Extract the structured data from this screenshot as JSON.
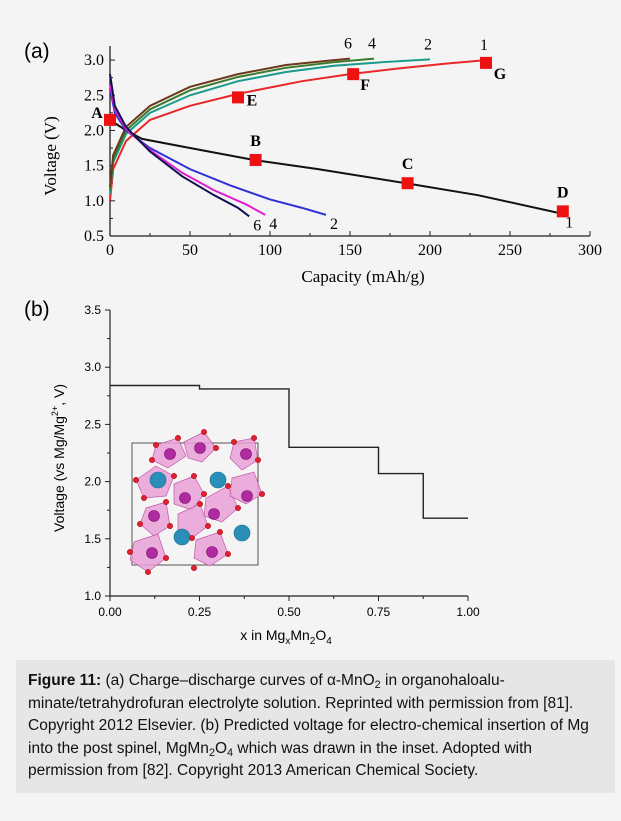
{
  "colors": {
    "red_curve": "#e8282a",
    "teal_curve": "#1a9a8a",
    "green_curve": "#3a7a2a",
    "brown_curve": "#6a3a1a",
    "black_curve": "#111111",
    "blue_curve": "#3030d8",
    "magenta_curve": "#e020d0",
    "navy_curve": "#101050",
    "marker": "#ee1111",
    "polyhedra": "#e9a0d6",
    "mg_atom": "#2a8fb8",
    "mn_atom": "#b02aa0",
    "o_atom": "#e02030"
  },
  "chart_data": [
    {
      "type": "line",
      "panel_label": "(a)",
      "xlabel": "Capacity (mAh/g)",
      "ylabel": "Voltage (V)",
      "xlim": [
        0,
        300
      ],
      "ylim": [
        0.5,
        3.2
      ],
      "xticks": [
        "0",
        "50",
        "100",
        "150",
        "200",
        "250",
        "300"
      ],
      "yticks": [
        "0.5",
        "1.0",
        "1.5",
        "2.0",
        "2.5",
        "3.0"
      ],
      "xtick_values": [
        0,
        50,
        100,
        150,
        200,
        250,
        300
      ],
      "ytick_values": [
        0.5,
        1.0,
        1.5,
        2.0,
        2.5,
        3.0
      ],
      "series": [
        {
          "name": "1",
          "color_key": "red_curve",
          "x": [
            0,
            2,
            10,
            25,
            50,
            80,
            120,
            150,
            180,
            210,
            235
          ],
          "y": [
            1.0,
            1.45,
            1.85,
            2.15,
            2.35,
            2.52,
            2.7,
            2.8,
            2.88,
            2.95,
            3.0
          ]
        },
        {
          "name": "2",
          "color_key": "teal_curve",
          "x": [
            0,
            2,
            10,
            25,
            50,
            80,
            110,
            140,
            170,
            200
          ],
          "y": [
            1.1,
            1.55,
            1.95,
            2.25,
            2.5,
            2.7,
            2.83,
            2.92,
            2.97,
            3.01
          ]
        },
        {
          "name": "4",
          "color_key": "green_curve",
          "x": [
            0,
            2,
            10,
            25,
            50,
            80,
            110,
            140,
            165
          ],
          "y": [
            1.15,
            1.6,
            2.0,
            2.3,
            2.57,
            2.76,
            2.89,
            2.97,
            3.02
          ]
        },
        {
          "name": "6",
          "color_key": "brown_curve",
          "x": [
            0,
            2,
            10,
            25,
            50,
            80,
            110,
            140,
            150
          ],
          "y": [
            1.2,
            1.65,
            2.05,
            2.35,
            2.62,
            2.8,
            2.93,
            3.0,
            3.02
          ]
        },
        {
          "name": "1",
          "color_key": "black_curve",
          "x": [
            0,
            10,
            20,
            50,
            90,
            130,
            185,
            230,
            282
          ],
          "y": [
            2.15,
            2.0,
            1.88,
            1.75,
            1.58,
            1.45,
            1.25,
            1.08,
            0.82
          ]
        },
        {
          "name": "2",
          "color_key": "blue_curve",
          "x": [
            0,
            3,
            10,
            25,
            50,
            75,
            100,
            120,
            135
          ],
          "y": [
            2.6,
            2.25,
            2.0,
            1.75,
            1.45,
            1.22,
            1.02,
            0.9,
            0.8
          ]
        },
        {
          "name": "4",
          "color_key": "magenta_curve",
          "x": [
            0,
            3,
            10,
            25,
            45,
            65,
            85,
            97
          ],
          "y": [
            2.65,
            2.3,
            2.02,
            1.72,
            1.4,
            1.15,
            0.95,
            0.8
          ]
        },
        {
          "name": "6",
          "color_key": "navy_curve",
          "x": [
            0,
            3,
            10,
            25,
            45,
            65,
            80,
            87
          ],
          "y": [
            2.8,
            2.35,
            2.05,
            1.7,
            1.35,
            1.08,
            0.9,
            0.78
          ]
        }
      ],
      "markers": [
        {
          "label": "A",
          "x": 0,
          "y": 2.15
        },
        {
          "label": "B",
          "x": 91,
          "y": 1.58
        },
        {
          "label": "C",
          "x": 186,
          "y": 1.25
        },
        {
          "label": "D",
          "x": 283,
          "y": 0.85
        },
        {
          "label": "E",
          "x": 80,
          "y": 2.47
        },
        {
          "label": "F",
          "x": 152,
          "y": 2.8
        },
        {
          "label": "G",
          "x": 235,
          "y": 2.96
        }
      ]
    },
    {
      "type": "line",
      "panel_label": "(b)",
      "xlabel_prefix": "x in Mg",
      "xlabel_sub1": "x",
      "xlabel_mid": "Mn",
      "xlabel_sub2": "2",
      "xlabel_mid2": "O",
      "xlabel_sub3": "4",
      "ylabel_main": "Voltage (vs Mg/Mg",
      "ylabel_sup": "2+",
      "ylabel_end": ", V)",
      "xlim": [
        0,
        1.0
      ],
      "ylim": [
        1.0,
        3.5
      ],
      "xticks": [
        "0.00",
        "0.25",
        "0.50",
        "0.75",
        "1.00"
      ],
      "yticks": [
        "1.0",
        "1.5",
        "2.0",
        "2.5",
        "3.0",
        "3.5"
      ],
      "xtick_values": [
        0,
        0.25,
        0.5,
        0.75,
        1.0
      ],
      "ytick_values": [
        1.0,
        1.5,
        2.0,
        2.5,
        3.0,
        3.5
      ],
      "step_x": [
        0,
        0.25,
        0.25,
        0.5,
        0.5,
        0.75,
        0.75,
        0.875,
        0.875,
        1.0
      ],
      "step_y": [
        2.84,
        2.84,
        2.81,
        2.81,
        2.3,
        2.3,
        2.07,
        2.07,
        1.68,
        1.68
      ]
    }
  ],
  "caption": {
    "label": "Figure 11:",
    "part1": " (a) Charge–discharge curves of α-MnO",
    "sub1": "2",
    "part2": " in organohaloalu-minate/tetrahydrofuran electrolyte solution. Reprinted with permission from [81]. Copyright 2012 Elsevier. (b) Predicted voltage for electro-chemical insertion of Mg into the post spinel, MgMn",
    "sub2": "2",
    "part3": "O",
    "sub3": "4",
    "part4": " which was drawn in the inset. Adopted with permission from [82]. Copyright 2013 American Chemical Society."
  }
}
